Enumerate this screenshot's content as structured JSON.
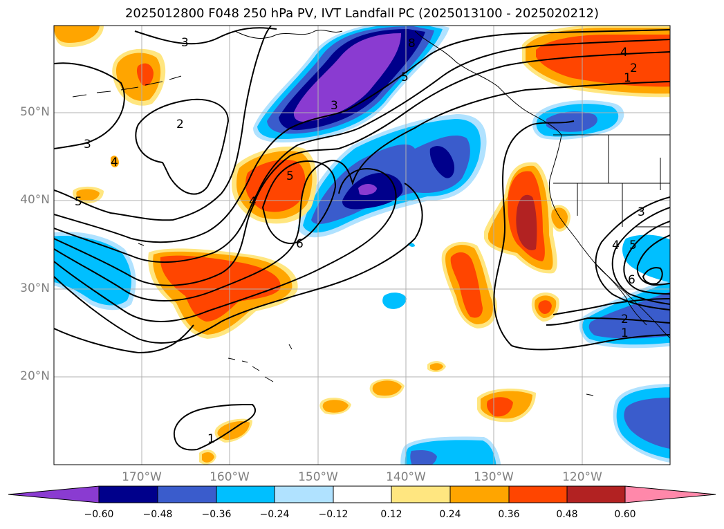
{
  "title": "2025012800 F048 250 hPa PV, IVT Landfall PC (2025013100 - 2025020212)",
  "lat_labels": [
    "50°N",
    "40°N",
    "30°N",
    "20°N"
  ],
  "lon_labels": [
    "170°W",
    "160°W",
    "150°W",
    "140°W",
    "130°W",
    "120°W"
  ],
  "colorbar": {
    "tick_labels": [
      "−0.60",
      "−0.48",
      "−0.36",
      "−0.24",
      "−0.12",
      "0.12",
      "0.24",
      "0.36",
      "0.48",
      "0.60"
    ],
    "colors": [
      "#8a3bd1",
      "#00008b",
      "#3a5ccc",
      "#00bfff",
      "#b0e2ff",
      "#ffffff",
      "#ffe680",
      "#ffa500",
      "#ff4500",
      "#b22222",
      "#ff88aa"
    ]
  },
  "contour_labels": [
    "3",
    "2",
    "3",
    "4",
    "5",
    "8",
    "5",
    "3",
    "4",
    "5",
    "6",
    "4",
    "2",
    "1",
    "3",
    "4",
    "5",
    "6",
    "2",
    "1",
    "1",
    "5"
  ],
  "colors": {
    "grid": "#b0b0b0",
    "contour": "#000000",
    "coast": "#000000"
  }
}
